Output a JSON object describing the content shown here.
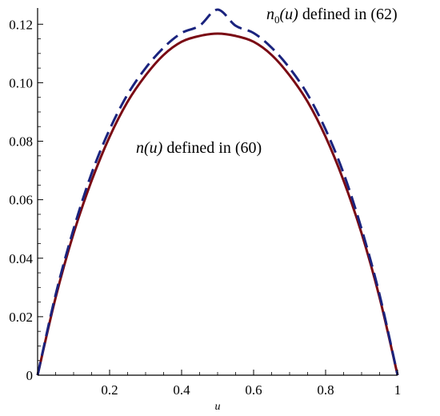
{
  "chart_data": {
    "type": "line",
    "xlabel": "u",
    "xlim": [
      0,
      1
    ],
    "ylim": [
      0,
      0.125
    ],
    "x_ticks": [
      "0.2",
      "0.4",
      "0.6",
      "0.8",
      "1"
    ],
    "y_ticks": [
      "0",
      "0.02",
      "0.04",
      "0.06",
      "0.08",
      "0.10",
      "0.12"
    ],
    "series": [
      {
        "style": "solid",
        "color": "#7a0a14",
        "x": [
          0,
          0.05,
          0.1,
          0.15,
          0.2,
          0.25,
          0.3,
          0.35,
          0.4,
          0.45,
          0.5,
          0.55,
          0.6,
          0.65,
          0.7,
          0.75,
          0.8,
          0.85,
          0.9,
          0.95,
          1
        ],
        "y": [
          0,
          0.0265,
          0.0485,
          0.0665,
          0.0815,
          0.0935,
          0.1025,
          0.1095,
          0.114,
          0.116,
          0.1168,
          0.116,
          0.114,
          0.1095,
          0.1025,
          0.0935,
          0.0815,
          0.0665,
          0.0485,
          0.0265,
          0
        ]
      },
      {
        "style": "dashed",
        "color": "#1a237e",
        "x": [
          0,
          0.05,
          0.1,
          0.15,
          0.2,
          0.25,
          0.3,
          0.35,
          0.4,
          0.45,
          0.5,
          0.55,
          0.6,
          0.65,
          0.7,
          0.75,
          0.8,
          0.85,
          0.9,
          0.95,
          1
        ],
        "y": [
          0,
          0.0275,
          0.05,
          0.069,
          0.084,
          0.096,
          0.105,
          0.112,
          0.117,
          0.1195,
          0.125,
          0.1195,
          0.117,
          0.112,
          0.105,
          0.096,
          0.084,
          0.069,
          0.05,
          0.0275,
          0
        ]
      }
    ],
    "annotations": [
      {
        "id": "n0",
        "pre": "n",
        "sub": "0",
        "arg": "(u)",
        "rest": " defined in (62)"
      },
      {
        "id": "n",
        "pre": "n",
        "sub": "",
        "arg": "(u)",
        "rest": " defined in (60)"
      }
    ]
  }
}
